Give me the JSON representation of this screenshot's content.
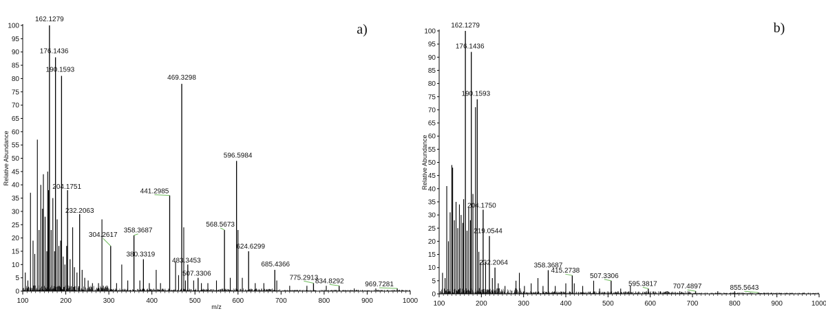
{
  "chart_data": [
    {
      "type": "bar",
      "panel_label": "a)",
      "xlabel": "m/z",
      "ylabel": "Relative Abundance",
      "xlim": [
        100,
        1000
      ],
      "ylim": [
        0,
        100
      ],
      "x_ticks": [
        100,
        200,
        300,
        400,
        500,
        600,
        700,
        800,
        900,
        1000
      ],
      "y_ticks": [
        0,
        5,
        10,
        15,
        20,
        25,
        30,
        35,
        40,
        45,
        50,
        55,
        60,
        65,
        70,
        75,
        80,
        85,
        90,
        95,
        100
      ],
      "grid": false,
      "labeled_peaks": [
        {
          "mz": 162.1279,
          "label": "162.1279",
          "intensity": 100
        },
        {
          "mz": 176.1436,
          "label": "176.1436",
          "intensity": 88
        },
        {
          "mz": 190.1593,
          "label": "190.1593",
          "intensity": 81
        },
        {
          "mz": 204.1751,
          "label": "204.1751",
          "intensity": 38
        },
        {
          "mz": 232.2063,
          "label": "232.2063",
          "intensity": 29
        },
        {
          "mz": 304.2617,
          "label": "304.2617",
          "intensity": 17
        },
        {
          "mz": 358.3687,
          "label": "358.3687",
          "intensity": 21
        },
        {
          "mz": 380.3319,
          "label": "380.3319",
          "intensity": 12
        },
        {
          "mz": 441.2985,
          "label": "441.2985",
          "intensity": 36
        },
        {
          "mz": 469.3298,
          "label": "469.3298",
          "intensity": 78
        },
        {
          "mz": 483.3453,
          "label": "483.3453",
          "intensity": 10
        },
        {
          "mz": 507.3306,
          "label": "507.3306",
          "intensity": 5
        },
        {
          "mz": 568.5673,
          "label": "568.5673",
          "intensity": 23
        },
        {
          "mz": 596.5984,
          "label": "596.5984",
          "intensity": 49
        },
        {
          "mz": 624.6299,
          "label": "624.6299",
          "intensity": 15
        },
        {
          "mz": 685.4366,
          "label": "685.4366",
          "intensity": 8
        },
        {
          "mz": 775.2913,
          "label": "775.2913",
          "intensity": 3
        },
        {
          "mz": 834.8292,
          "label": "834.8292",
          "intensity": 2
        },
        {
          "mz": 969.7281,
          "label": "969.7281",
          "intensity": 1
        }
      ],
      "unlabeled_peaks": [
        {
          "mz": 106,
          "intensity": 7
        },
        {
          "mz": 112,
          "intensity": 4
        },
        {
          "mz": 118,
          "intensity": 37
        },
        {
          "mz": 124,
          "intensity": 19
        },
        {
          "mz": 128,
          "intensity": 14
        },
        {
          "mz": 134,
          "intensity": 57
        },
        {
          "mz": 138,
          "intensity": 23
        },
        {
          "mz": 142,
          "intensity": 40
        },
        {
          "mz": 146,
          "intensity": 31
        },
        {
          "mz": 148,
          "intensity": 44
        },
        {
          "mz": 152,
          "intensity": 28
        },
        {
          "mz": 156,
          "intensity": 15
        },
        {
          "mz": 158,
          "intensity": 45
        },
        {
          "mz": 160,
          "intensity": 38
        },
        {
          "mz": 166,
          "intensity": 23
        },
        {
          "mz": 170,
          "intensity": 35
        },
        {
          "mz": 174,
          "intensity": 15
        },
        {
          "mz": 180,
          "intensity": 27
        },
        {
          "mz": 184,
          "intensity": 17
        },
        {
          "mz": 188,
          "intensity": 19
        },
        {
          "mz": 194,
          "intensity": 13
        },
        {
          "mz": 198,
          "intensity": 10
        },
        {
          "mz": 202,
          "intensity": 17
        },
        {
          "mz": 210,
          "intensity": 12
        },
        {
          "mz": 216,
          "intensity": 24
        },
        {
          "mz": 220,
          "intensity": 9
        },
        {
          "mz": 226,
          "intensity": 7
        },
        {
          "mz": 238,
          "intensity": 8
        },
        {
          "mz": 244,
          "intensity": 5
        },
        {
          "mz": 252,
          "intensity": 4
        },
        {
          "mz": 262,
          "intensity": 3
        },
        {
          "mz": 276,
          "intensity": 3
        },
        {
          "mz": 284,
          "intensity": 27
        },
        {
          "mz": 318,
          "intensity": 3
        },
        {
          "mz": 330,
          "intensity": 10
        },
        {
          "mz": 344,
          "intensity": 4
        },
        {
          "mz": 372,
          "intensity": 4
        },
        {
          "mz": 394,
          "intensity": 3
        },
        {
          "mz": 410,
          "intensity": 8
        },
        {
          "mz": 420,
          "intensity": 3
        },
        {
          "mz": 455,
          "intensity": 11
        },
        {
          "mz": 462,
          "intensity": 6
        },
        {
          "mz": 474,
          "intensity": 24
        },
        {
          "mz": 478,
          "intensity": 4
        },
        {
          "mz": 497,
          "intensity": 4
        },
        {
          "mz": 515,
          "intensity": 3
        },
        {
          "mz": 530,
          "intensity": 3
        },
        {
          "mz": 550,
          "intensity": 4
        },
        {
          "mz": 582,
          "intensity": 5
        },
        {
          "mz": 600,
          "intensity": 23
        },
        {
          "mz": 610,
          "intensity": 5
        },
        {
          "mz": 640,
          "intensity": 3
        },
        {
          "mz": 660,
          "intensity": 3
        },
        {
          "mz": 690,
          "intensity": 4
        },
        {
          "mz": 720,
          "intensity": 2
        },
        {
          "mz": 760,
          "intensity": 2
        },
        {
          "mz": 805,
          "intensity": 2
        },
        {
          "mz": 870,
          "intensity": 1
        },
        {
          "mz": 920,
          "intensity": 1
        }
      ]
    },
    {
      "type": "bar",
      "panel_label": "b)",
      "xlabel": "",
      "ylabel": "Relative Abundance",
      "xlim": [
        100,
        1000
      ],
      "ylim": [
        0,
        100
      ],
      "x_ticks": [
        100,
        200,
        300,
        400,
        500,
        600,
        700,
        800,
        900,
        1000
      ],
      "y_ticks": [
        0,
        5,
        10,
        15,
        20,
        25,
        30,
        35,
        40,
        45,
        50,
        55,
        60,
        65,
        70,
        75,
        80,
        85,
        90,
        95,
        100
      ],
      "grid": false,
      "labeled_peaks": [
        {
          "mz": 162.1279,
          "label": "162.1279",
          "intensity": 100
        },
        {
          "mz": 176.1436,
          "label": "176.1436",
          "intensity": 92
        },
        {
          "mz": 190.1593,
          "label": "190.1593",
          "intensity": 74
        },
        {
          "mz": 204.175,
          "label": "204.1750",
          "intensity": 32
        },
        {
          "mz": 219.0544,
          "label": "219.0544",
          "intensity": 22
        },
        {
          "mz": 232.2064,
          "label": "232.2064",
          "intensity": 10
        },
        {
          "mz": 358.3687,
          "label": "358.3687",
          "intensity": 9
        },
        {
          "mz": 415.2738,
          "label": "415.2738",
          "intensity": 7
        },
        {
          "mz": 507.3306,
          "label": "507.3306",
          "intensity": 5
        },
        {
          "mz": 595.3817,
          "label": "595.3817",
          "intensity": 2
        },
        {
          "mz": 707.4897,
          "label": "707.4897",
          "intensity": 1
        },
        {
          "mz": 855.5643,
          "label": "855.5643",
          "intensity": 0.5
        }
      ],
      "unlabeled_peaks": [
        {
          "mz": 108,
          "intensity": 8
        },
        {
          "mz": 114,
          "intensity": 6
        },
        {
          "mz": 118,
          "intensity": 41
        },
        {
          "mz": 122,
          "intensity": 20
        },
        {
          "mz": 126,
          "intensity": 31
        },
        {
          "mz": 130,
          "intensity": 49
        },
        {
          "mz": 132,
          "intensity": 48
        },
        {
          "mz": 136,
          "intensity": 28
        },
        {
          "mz": 140,
          "intensity": 35
        },
        {
          "mz": 144,
          "intensity": 25
        },
        {
          "mz": 148,
          "intensity": 34
        },
        {
          "mz": 152,
          "intensity": 30
        },
        {
          "mz": 156,
          "intensity": 27
        },
        {
          "mz": 158,
          "intensity": 36
        },
        {
          "mz": 166,
          "intensity": 24
        },
        {
          "mz": 170,
          "intensity": 33
        },
        {
          "mz": 174,
          "intensity": 28
        },
        {
          "mz": 180,
          "intensity": 38
        },
        {
          "mz": 186,
          "intensity": 71
        },
        {
          "mz": 194,
          "intensity": 16
        },
        {
          "mz": 198,
          "intensity": 12
        },
        {
          "mz": 210,
          "intensity": 12
        },
        {
          "mz": 226,
          "intensity": 6
        },
        {
          "mz": 240,
          "intensity": 4
        },
        {
          "mz": 256,
          "intensity": 3
        },
        {
          "mz": 282,
          "intensity": 5
        },
        {
          "mz": 290,
          "intensity": 8
        },
        {
          "mz": 302,
          "intensity": 3
        },
        {
          "mz": 318,
          "intensity": 4
        },
        {
          "mz": 334,
          "intensity": 6
        },
        {
          "mz": 346,
          "intensity": 3
        },
        {
          "mz": 375,
          "intensity": 3
        },
        {
          "mz": 400,
          "intensity": 4
        },
        {
          "mz": 420,
          "intensity": 4
        },
        {
          "mz": 440,
          "intensity": 3
        },
        {
          "mz": 466,
          "intensity": 5
        },
        {
          "mz": 480,
          "intensity": 2
        },
        {
          "mz": 530,
          "intensity": 2
        },
        {
          "mz": 553,
          "intensity": 3
        },
        {
          "mz": 640,
          "intensity": 1
        },
        {
          "mz": 670,
          "intensity": 1
        },
        {
          "mz": 760,
          "intensity": 1
        },
        {
          "mz": 800,
          "intensity": 1
        }
      ]
    }
  ]
}
